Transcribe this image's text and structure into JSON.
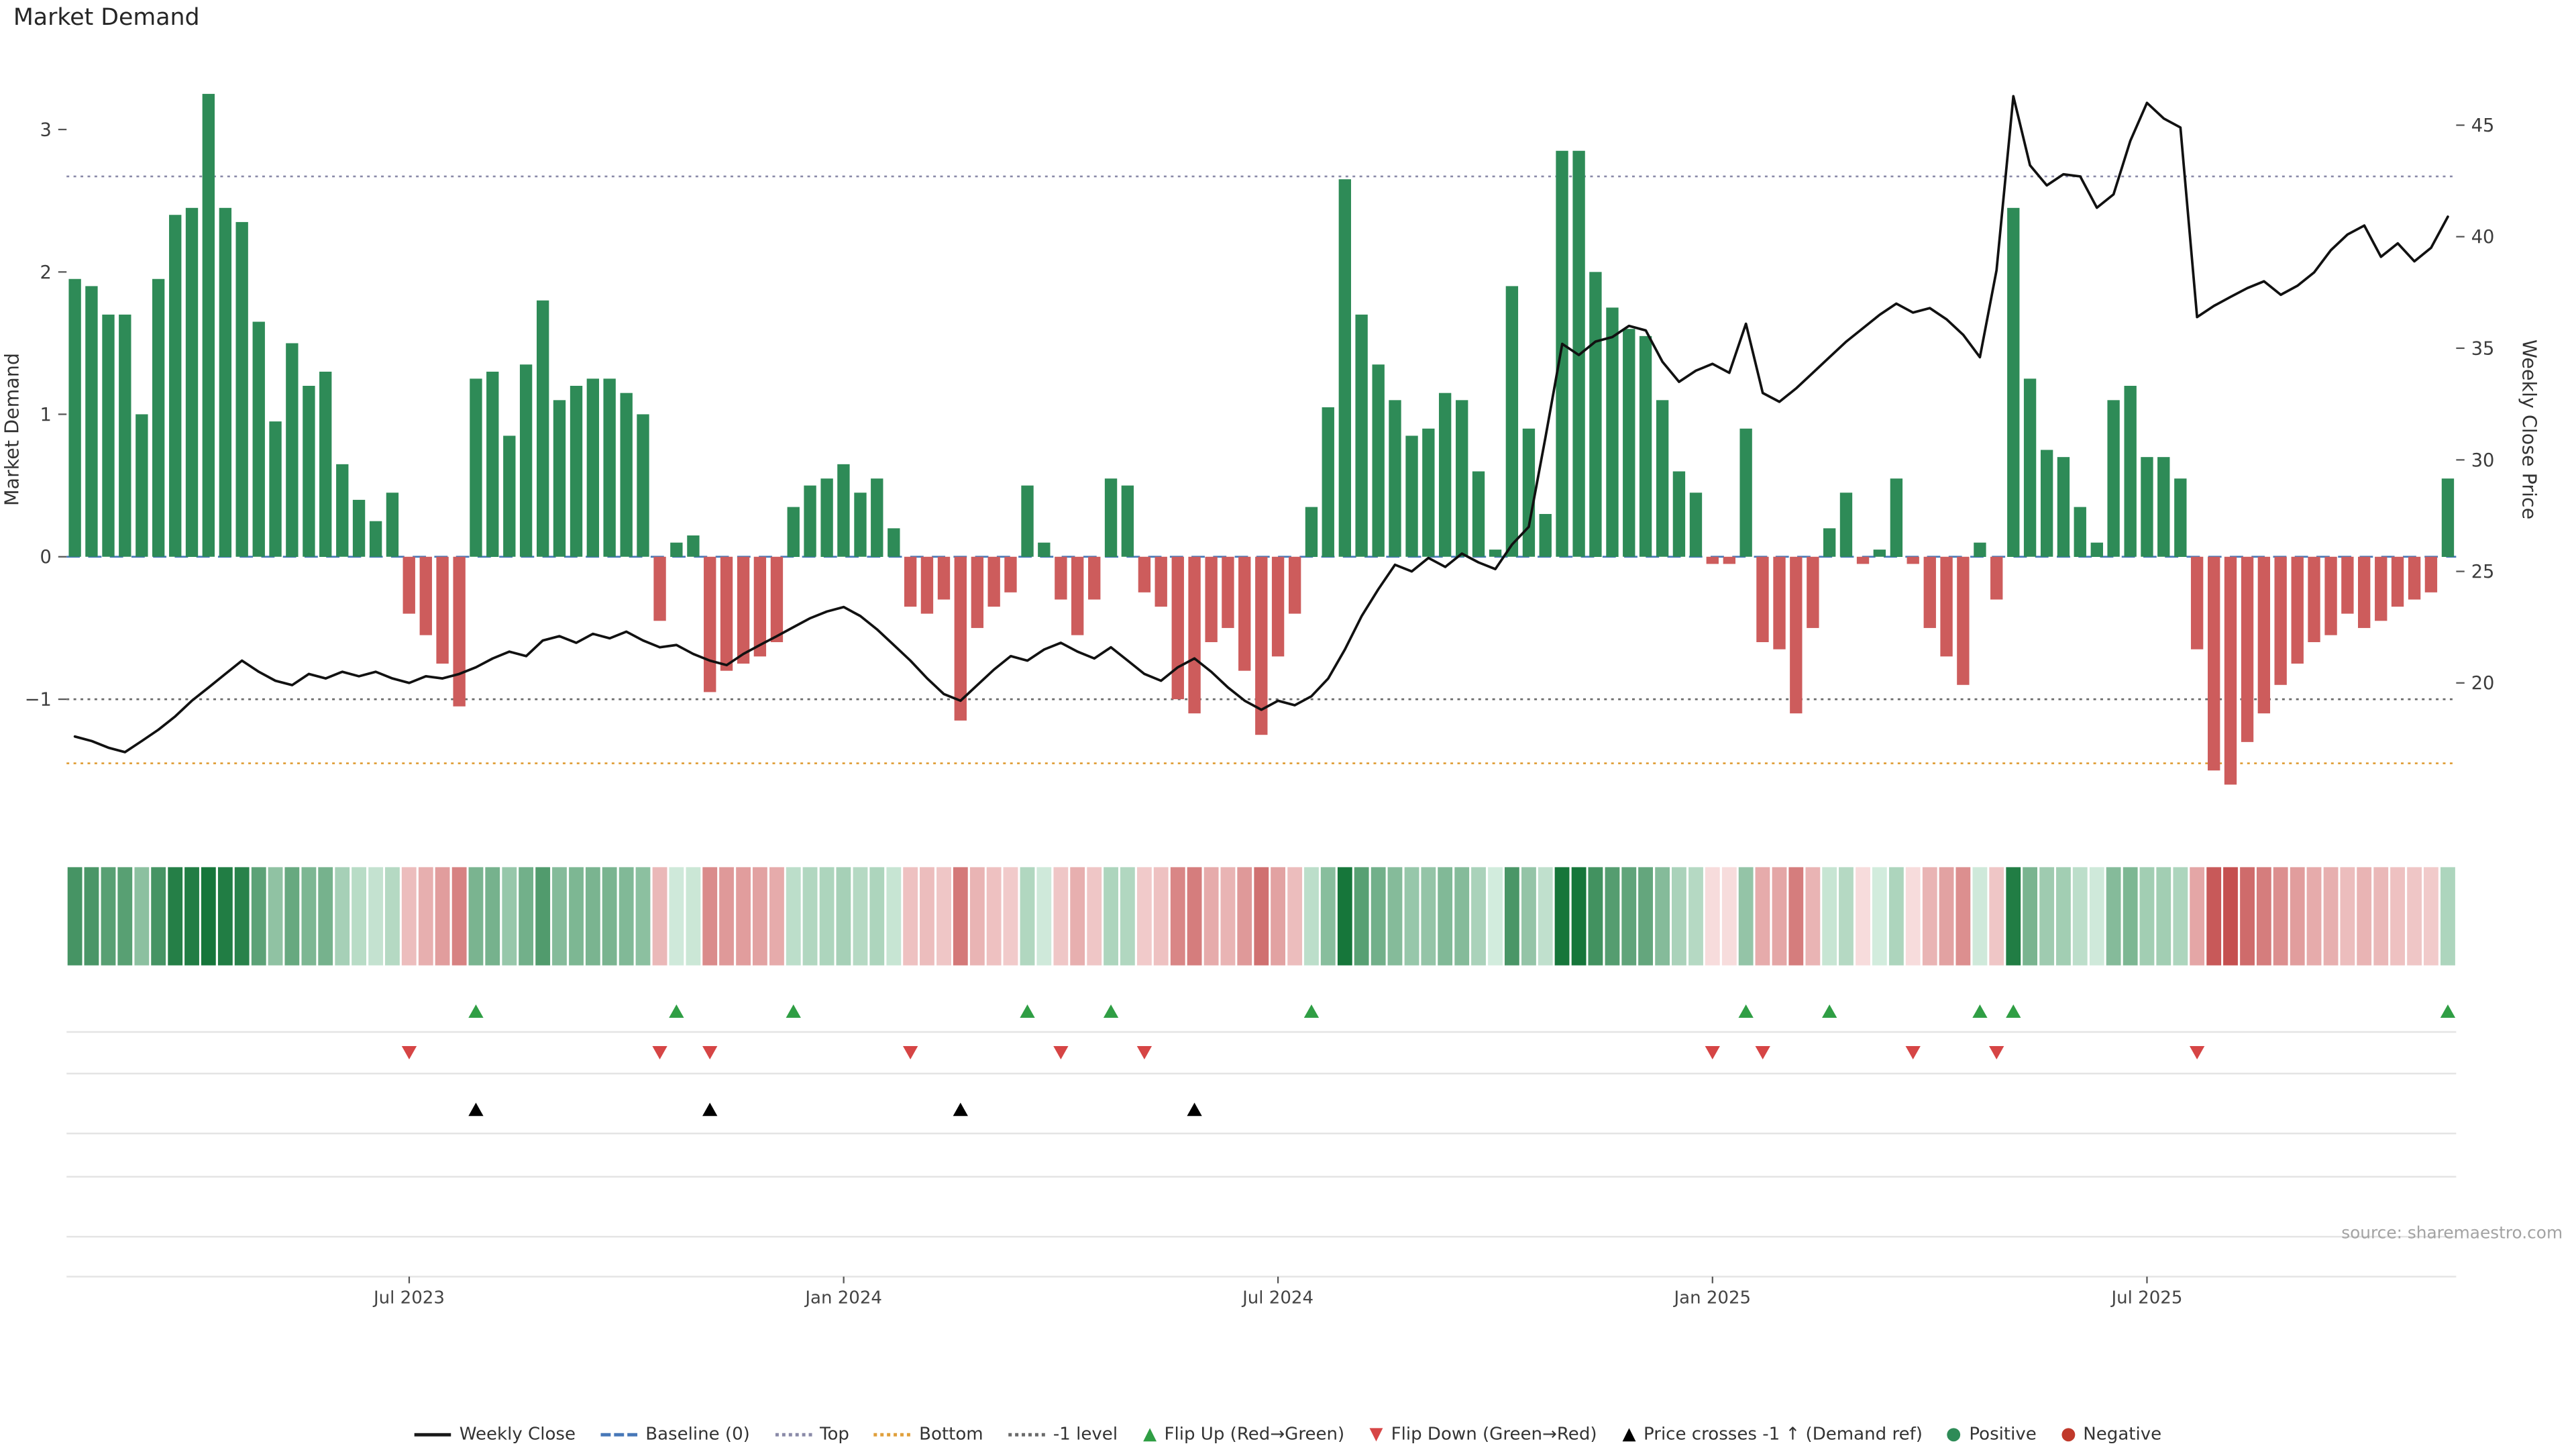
{
  "title": "Market Demand",
  "source_note": "source: sharemaestro.com",
  "colors": {
    "positive_bar": "#2e8b57",
    "negative_bar": "#cd5c5c",
    "price_line": "#111111",
    "flip_up": "#2f9e44",
    "flip_down": "#d64545",
    "price_cross": "#000000",
    "panel_grid": "#e4e4e4",
    "tick_text": "#3d3d3d",
    "heat_pos_light": "#d6eee0",
    "heat_pos_dark": "#16763a",
    "heat_neg_light": "#f9e1e1",
    "heat_neg_dark": "#c55050"
  },
  "axes": {
    "left_label": "Market Demand",
    "right_label": "Weekly Close Price",
    "left_ticks": [
      {
        "value": 3,
        "label": "3"
      },
      {
        "value": 2,
        "label": "2"
      },
      {
        "value": 1,
        "label": "1"
      },
      {
        "value": 0,
        "label": "0"
      },
      {
        "value": -1,
        "label": "−1"
      }
    ],
    "right_ticks": [
      {
        "value": 45,
        "label": "45"
      },
      {
        "value": 40,
        "label": "40"
      },
      {
        "value": 35,
        "label": "35"
      },
      {
        "value": 30,
        "label": "30"
      },
      {
        "value": 25,
        "label": "25"
      },
      {
        "value": 20,
        "label": "20"
      }
    ],
    "x_ticks": [
      {
        "index": 20,
        "label": "Jul 2023"
      },
      {
        "index": 46,
        "label": "Jan 2024"
      },
      {
        "index": 72,
        "label": "Jul 2024"
      },
      {
        "index": 98,
        "label": "Jan 2025"
      },
      {
        "index": 124,
        "label": "Jul 2025"
      }
    ]
  },
  "legend": {
    "items": [
      {
        "label": "Weekly Close",
        "swatch": "line",
        "color": "#1a1a1a"
      },
      {
        "label": "Baseline (0)",
        "swatch": "dashed",
        "color": "#4878b8"
      },
      {
        "label": "Top",
        "swatch": "dotted",
        "color": "#8a8aa8"
      },
      {
        "label": "Bottom",
        "swatch": "dotted",
        "color": "#e0a03c"
      },
      {
        "label": "-1 level",
        "swatch": "dotted",
        "color": "#6a6a6a"
      },
      {
        "label": "Flip Up (Red→Green)",
        "swatch": "triangle-up",
        "color": "#2f9e44"
      },
      {
        "label": "Flip Down (Green→Red)",
        "swatch": "triangle-down",
        "color": "#d64545"
      },
      {
        "label": "Price crosses -1 ↑ (Demand ref)",
        "swatch": "triangle-up",
        "color": "#000000"
      },
      {
        "label": "Positive",
        "swatch": "dot",
        "color": "#2e8b57"
      },
      {
        "label": "Negative",
        "swatch": "dot",
        "color": "#c0392b"
      }
    ]
  },
  "chart_data": {
    "type": "combo",
    "x_unit": "week",
    "n_points": 143,
    "title": "Market Demand",
    "ylabel_left": "Market Demand",
    "ylabel_right": "Weekly Close Price",
    "ylim_demand": [
      -1.7,
      3.5
    ],
    "ylim_price": [
      14.8,
      48.0
    ],
    "xlabels": [
      "Jul 2023",
      "Jan 2024",
      "Jul 2024",
      "Jan 2025",
      "Jul 2025"
    ],
    "series": [
      {
        "name": "Market Demand",
        "type": "bar",
        "axis": "left",
        "values": [
          1.95,
          1.9,
          1.7,
          1.7,
          1.0,
          1.95,
          2.4,
          2.45,
          3.25,
          2.45,
          2.35,
          1.65,
          0.95,
          1.5,
          1.2,
          1.3,
          0.65,
          0.4,
          0.25,
          0.45,
          -0.4,
          -0.55,
          -0.75,
          -1.05,
          1.25,
          1.3,
          0.85,
          1.35,
          1.8,
          1.1,
          1.2,
          1.25,
          1.25,
          1.15,
          1.0,
          -0.45,
          0.1,
          0.15,
          -0.95,
          -0.8,
          -0.75,
          -0.7,
          -0.6,
          0.35,
          0.5,
          0.55,
          0.65,
          0.45,
          0.55,
          0.2,
          -0.35,
          -0.4,
          -0.3,
          -1.15,
          -0.5,
          -0.35,
          -0.25,
          0.5,
          0.1,
          -0.3,
          -0.55,
          -0.3,
          0.55,
          0.5,
          -0.25,
          -0.35,
          -1.0,
          -1.1,
          -0.6,
          -0.5,
          -0.8,
          -1.25,
          -0.7,
          -0.4,
          0.35,
          1.05,
          2.65,
          1.7,
          1.35,
          1.1,
          0.85,
          0.9,
          1.15,
          1.1,
          0.6,
          0.05,
          1.9,
          0.9,
          0.3,
          2.85,
          2.85,
          2.0,
          1.75,
          1.6,
          1.55,
          1.1,
          0.6,
          0.45,
          -0.05,
          -0.05,
          0.9,
          -0.6,
          -0.65,
          -1.1,
          -0.5,
          0.2,
          0.45,
          -0.05,
          0.05,
          0.55,
          -0.05,
          -0.5,
          -0.7,
          -0.9,
          0.1,
          -0.3,
          2.45,
          1.25,
          0.75,
          0.7,
          0.35,
          0.1,
          1.1,
          1.2,
          0.7,
          0.7,
          0.55,
          -0.65,
          -1.5,
          -1.6,
          -1.3,
          -1.1,
          -0.9,
          -0.75,
          -0.6,
          -0.55,
          -0.4,
          -0.5,
          -0.45,
          -0.35,
          -0.3,
          -0.25,
          0.55
        ]
      },
      {
        "name": "Weekly Close",
        "type": "line",
        "axis": "right",
        "values": [
          17.6,
          17.4,
          17.1,
          16.9,
          17.4,
          17.9,
          18.5,
          19.2,
          19.8,
          20.4,
          21.0,
          20.5,
          20.1,
          19.9,
          20.4,
          20.2,
          20.5,
          20.3,
          20.5,
          20.2,
          20.0,
          20.3,
          20.2,
          20.4,
          20.7,
          21.1,
          21.4,
          21.2,
          21.9,
          22.1,
          21.8,
          22.2,
          22.0,
          22.3,
          21.9,
          21.6,
          21.7,
          21.3,
          21.0,
          20.8,
          21.3,
          21.7,
          22.1,
          22.5,
          22.9,
          23.2,
          23.4,
          23.0,
          22.4,
          21.7,
          21.0,
          20.2,
          19.5,
          19.2,
          19.9,
          20.6,
          21.2,
          21.0,
          21.5,
          21.8,
          21.4,
          21.1,
          21.6,
          21.0,
          20.4,
          20.1,
          20.7,
          21.1,
          20.5,
          19.8,
          19.2,
          18.8,
          19.2,
          19.0,
          19.4,
          20.2,
          21.5,
          23.0,
          24.2,
          25.3,
          25.0,
          25.6,
          25.2,
          25.8,
          25.4,
          25.1,
          26.2,
          27.0,
          31.0,
          35.2,
          34.7,
          35.3,
          35.5,
          36.0,
          35.8,
          34.4,
          33.5,
          34.0,
          34.3,
          33.9,
          36.1,
          33.0,
          32.6,
          33.2,
          33.9,
          34.6,
          35.3,
          35.9,
          36.5,
          37.0,
          36.6,
          36.8,
          36.3,
          35.6,
          34.6,
          38.5,
          46.3,
          43.2,
          42.3,
          42.8,
          42.7,
          41.3,
          41.9,
          44.3,
          46.0,
          45.3,
          44.9,
          36.4,
          36.9,
          37.3,
          37.7,
          38.0,
          37.4,
          37.8,
          38.4,
          39.4,
          40.1,
          40.5,
          39.1,
          39.7,
          38.9,
          39.5,
          40.9
        ]
      }
    ],
    "reference_lines": [
      {
        "name": "Baseline (0)",
        "value": 0,
        "style": "dashed",
        "color": "#4878b8"
      },
      {
        "name": "Top",
        "value": 2.67,
        "style": "dotted",
        "color": "#8a8aa8"
      },
      {
        "name": "Bottom",
        "value": -1.45,
        "style": "dotted",
        "color": "#e0a03c"
      },
      {
        "name": "-1 level",
        "value": -1.0,
        "style": "dotted",
        "color": "#6a6a6a"
      }
    ],
    "markers": {
      "flip_up_indices": [
        24,
        36,
        43,
        57,
        62,
        74,
        100,
        105,
        114,
        116,
        142
      ],
      "flip_down_indices": [
        20,
        35,
        38,
        50,
        59,
        64,
        98,
        101,
        110,
        115,
        127
      ],
      "price_cross_indices": [
        24,
        38,
        53,
        67
      ]
    },
    "heatmap": {
      "description": "weekly strip colored by Market Demand sign and magnitude",
      "source_series": "Market Demand"
    }
  }
}
